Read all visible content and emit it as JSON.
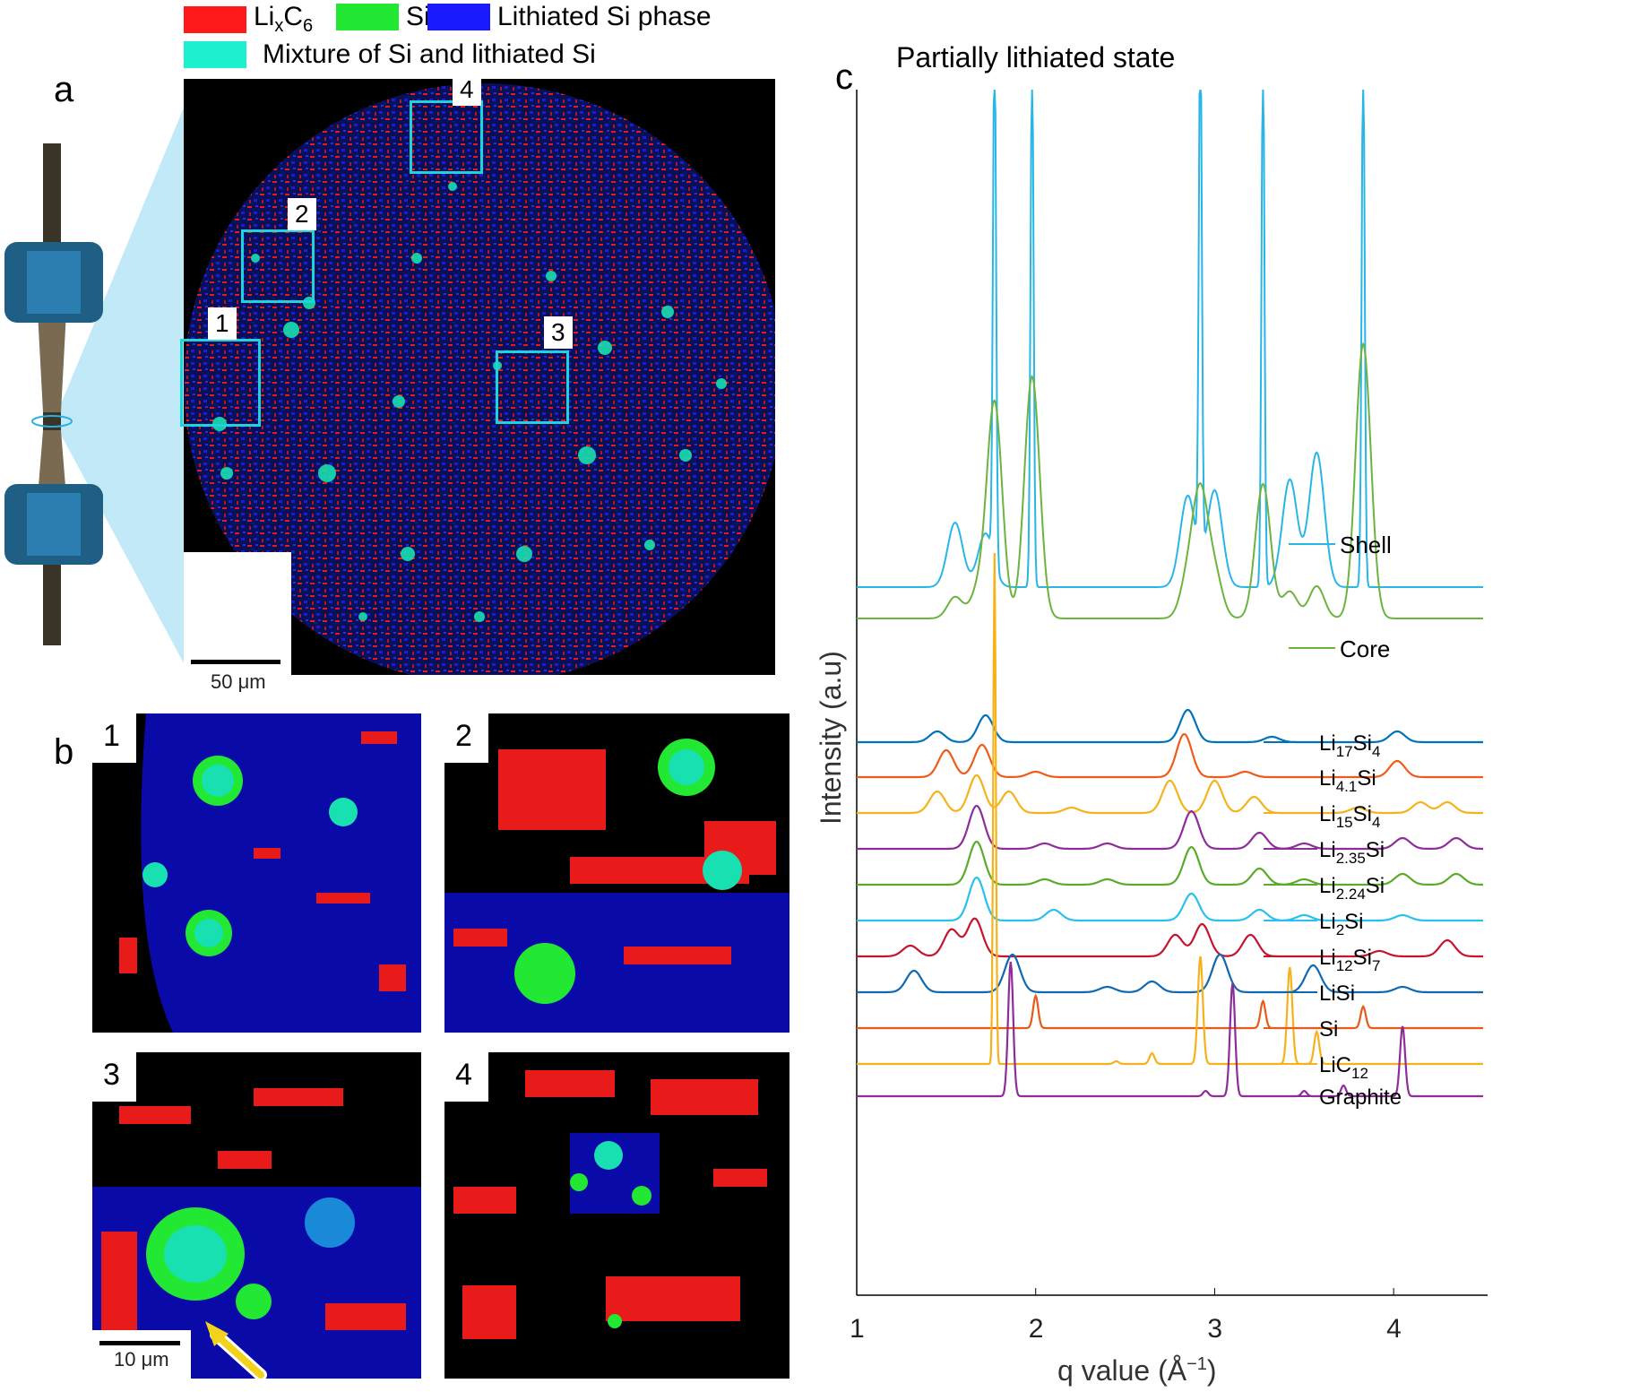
{
  "legend": {
    "items": [
      {
        "label_main": "Li",
        "sub1": "x",
        "label_mid": "C",
        "sub2": "6",
        "color": "#ff1a1a"
      },
      {
        "label_main": "Si",
        "color": "#22e833"
      },
      {
        "label_main": "Lithiated Si phase",
        "color": "#1a1aff"
      },
      {
        "label_main": "Mixture of Si and lithiated Si",
        "color": "#1ff0d0"
      }
    ]
  },
  "panel_a": {
    "letter": "a",
    "boxes": [
      {
        "num": "1"
      },
      {
        "num": "2"
      },
      {
        "num": "3"
      },
      {
        "num": "4"
      }
    ],
    "scalebar": "50 μm"
  },
  "panel_b": {
    "letter": "b",
    "tiles": [
      {
        "num": "1"
      },
      {
        "num": "2"
      },
      {
        "num": "3"
      },
      {
        "num": "4"
      }
    ],
    "scalebar": "10 μm"
  },
  "panel_c": {
    "letter": "c",
    "title": "Partially lithiated state",
    "ylabel": "Intensity (a.u)",
    "xlabel": "q value (Å",
    "xlabel_sup": "−1",
    "xlabel_tail": ")"
  },
  "chart_data": {
    "type": "line",
    "title": "Partially lithiated state",
    "xlabel": "q value (Å^-1)",
    "ylabel": "Intensity (a.u)",
    "xlim": [
      1,
      4.5
    ],
    "xticks": [
      "1",
      "2",
      "3",
      "4"
    ],
    "measured": [
      {
        "name": "Shell",
        "color": "#29b6e6",
        "baseline": 0.62,
        "peaks": [
          [
            1.55,
            0.12
          ],
          [
            1.72,
            0.1
          ],
          [
            1.77,
            1.0
          ],
          [
            1.98,
            1.0
          ],
          [
            2.85,
            0.17
          ],
          [
            2.92,
            1.0
          ],
          [
            3.0,
            0.18
          ],
          [
            3.27,
            1.0
          ],
          [
            3.42,
            0.2
          ],
          [
            3.57,
            0.25
          ],
          [
            3.83,
            1.0
          ]
        ]
      },
      {
        "name": "Core",
        "color": "#6db33f",
        "baseline": 0.69,
        "peaks": [
          [
            1.55,
            0.04
          ],
          [
            1.68,
            0.05
          ],
          [
            1.77,
            0.4
          ],
          [
            1.98,
            0.45
          ],
          [
            2.85,
            0.07
          ],
          [
            2.92,
            0.22
          ],
          [
            3.0,
            0.08
          ],
          [
            3.27,
            0.25
          ],
          [
            3.42,
            0.05
          ],
          [
            3.57,
            0.06
          ],
          [
            3.83,
            0.51
          ]
        ]
      }
    ],
    "references": [
      {
        "name": "Li",
        "sub": "17",
        "tail": "Si",
        "sub2": "4",
        "color": "#0072bd",
        "peaks": [
          [
            1.45,
            0.02
          ],
          [
            1.72,
            0.05
          ],
          [
            2.85,
            0.06
          ],
          [
            3.32,
            0.01
          ],
          [
            4.02,
            0.02
          ]
        ]
      },
      {
        "name": "Li",
        "sub": "4.1",
        "tail": "Si",
        "sub2": "",
        "color": "#f05a1a",
        "peaks": [
          [
            1.5,
            0.05
          ],
          [
            1.7,
            0.06
          ],
          [
            2.0,
            0.01
          ],
          [
            2.83,
            0.08
          ],
          [
            3.17,
            0.01
          ],
          [
            4.02,
            0.03
          ]
        ]
      },
      {
        "name": "Li",
        "sub": "15",
        "tail": "Si",
        "sub2": "4",
        "color": "#f5b21a",
        "peaks": [
          [
            1.45,
            0.04
          ],
          [
            1.67,
            0.07
          ],
          [
            1.85,
            0.04
          ],
          [
            2.2,
            0.01
          ],
          [
            2.75,
            0.06
          ],
          [
            3.0,
            0.06
          ],
          [
            3.22,
            0.03
          ],
          [
            3.8,
            0.01
          ],
          [
            4.15,
            0.02
          ],
          [
            4.3,
            0.02
          ]
        ]
      },
      {
        "name": "Li",
        "sub": "2.35",
        "tail": "Si",
        "sub2": "",
        "color": "#8e2c9a",
        "peaks": [
          [
            1.67,
            0.08
          ],
          [
            2.05,
            0.01
          ],
          [
            2.4,
            0.01
          ],
          [
            2.87,
            0.07
          ],
          [
            3.25,
            0.03
          ],
          [
            3.5,
            0.01
          ],
          [
            4.05,
            0.02
          ],
          [
            4.35,
            0.02
          ]
        ]
      },
      {
        "name": "Li",
        "sub": "2.24",
        "tail": "Si",
        "sub2": "",
        "color": "#5aab2a",
        "peaks": [
          [
            1.67,
            0.08
          ],
          [
            2.05,
            0.01
          ],
          [
            2.4,
            0.01
          ],
          [
            2.87,
            0.07
          ],
          [
            3.25,
            0.03
          ],
          [
            3.5,
            0.01
          ],
          [
            4.05,
            0.02
          ],
          [
            4.35,
            0.02
          ]
        ]
      },
      {
        "name": "Li",
        "sub": "2",
        "tail": "Si",
        "sub2": "",
        "color": "#28c0ee",
        "peaks": [
          [
            1.67,
            0.08
          ],
          [
            2.1,
            0.02
          ],
          [
            2.87,
            0.05
          ],
          [
            3.25,
            0.02
          ],
          [
            3.5,
            0.01
          ],
          [
            4.05,
            0.01
          ]
        ]
      },
      {
        "name": "Li",
        "sub": "12",
        "tail": "Si",
        "sub2": "7",
        "color": "#c4142e",
        "peaks": [
          [
            1.3,
            0.02
          ],
          [
            1.53,
            0.05
          ],
          [
            1.66,
            0.07
          ],
          [
            2.78,
            0.04
          ],
          [
            2.93,
            0.06
          ],
          [
            3.2,
            0.04
          ],
          [
            3.92,
            0.01
          ],
          [
            4.3,
            0.03
          ]
        ]
      },
      {
        "name": "LiSi",
        "sub": "",
        "tail": "",
        "sub2": "",
        "color": "#1068b0",
        "peaks": [
          [
            1.32,
            0.04
          ],
          [
            1.87,
            0.07
          ],
          [
            2.4,
            0.01
          ],
          [
            2.65,
            0.02
          ],
          [
            3.03,
            0.07
          ],
          [
            3.55,
            0.05
          ],
          [
            4.05,
            0.01
          ]
        ]
      },
      {
        "name": "Si",
        "sub": "",
        "tail": "",
        "sub2": "",
        "color": "#e85a18",
        "peaks": [
          [
            2.0,
            0.06
          ],
          [
            3.27,
            0.05
          ],
          [
            3.83,
            0.04
          ]
        ]
      },
      {
        "name": "LiC",
        "sub": "12",
        "tail": "",
        "sub2": "",
        "color": "#f5b21a",
        "peaks": [
          [
            1.77,
            0.95
          ],
          [
            2.92,
            0.2
          ],
          [
            3.42,
            0.18
          ],
          [
            3.57,
            0.06
          ],
          [
            2.65,
            0.02
          ],
          [
            2.45,
            0.005
          ]
        ]
      },
      {
        "name": "Graphite",
        "sub": "",
        "tail": "",
        "sub2": "",
        "color": "#8e2c9a",
        "peaks": [
          [
            1.86,
            0.25
          ],
          [
            2.95,
            0.01
          ],
          [
            3.1,
            0.21
          ],
          [
            3.5,
            0.01
          ],
          [
            3.72,
            0.02
          ],
          [
            4.05,
            0.13
          ]
        ]
      }
    ]
  }
}
